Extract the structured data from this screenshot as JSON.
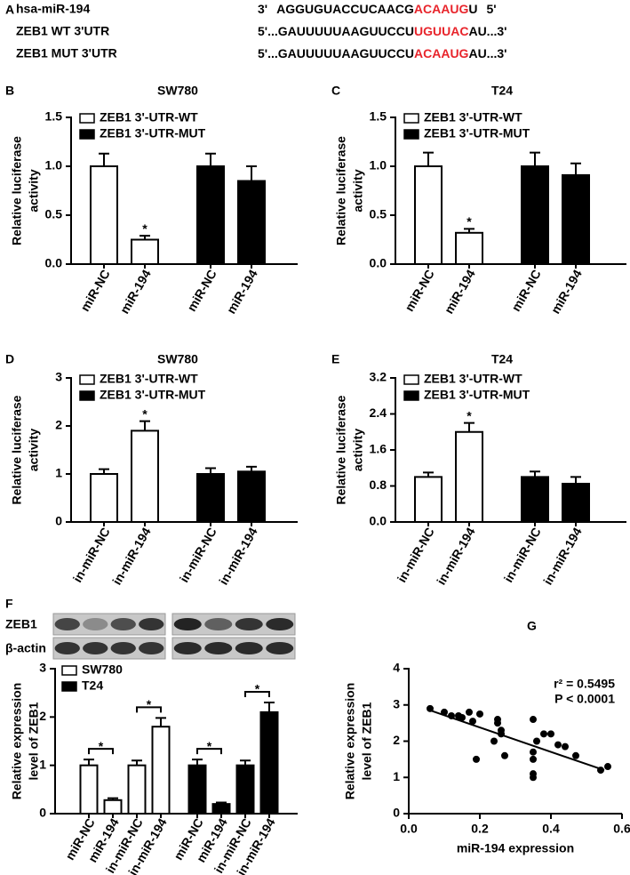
{
  "sequences": {
    "panel": "A",
    "highlight_color": "#e8242b",
    "rows": [
      {
        "name": "hsa-miR-194",
        "parts": [
          "3'",
          "AGGUGUACCUCAACG",
          "ACAAUG",
          "U",
          "5'"
        ],
        "highlight": 2
      },
      {
        "name": "ZEB1 WT 3'UTR",
        "parts": [
          "5'...GAUUUUUAAGUUCCU",
          "UGUUAC",
          "AU...3'"
        ],
        "highlight": 1
      },
      {
        "name": "ZEB1 MUT 3'UTR",
        "parts": [
          "5'...GAUUUUUAAGUUCCU",
          "ACAAUG",
          "AU...3'"
        ],
        "highlight": 1
      }
    ]
  },
  "chart_data": [
    {
      "type": "bar",
      "panel": "B",
      "title": "SW780",
      "ylabel": [
        "Relative  luciferase",
        "activity"
      ],
      "categories": [
        "miR-NC",
        "miR-194",
        "miR-NC",
        "miR-194"
      ],
      "ylim": [
        0,
        1.5
      ],
      "yticks": [
        {
          "value": 0,
          "label": "0.0"
        },
        {
          "value": 0.5,
          "label": "0.5"
        },
        {
          "value": 1,
          "label": "1.0"
        },
        {
          "value": 1.5,
          "label": "1.5"
        }
      ],
      "series": [
        {
          "name": "ZEB1 3'-UTR-WT",
          "color": "#ffffff",
          "values": [
            1.0,
            0.25,
            null,
            null
          ],
          "errors": [
            0.13,
            0.04,
            null,
            null
          ],
          "markers": [
            null,
            "*",
            null,
            null
          ]
        },
        {
          "name": "ZEB1 3'-UTR-MUT",
          "color": "#000000",
          "values": [
            null,
            null,
            1.0,
            0.85
          ],
          "errors": [
            null,
            null,
            0.13,
            0.15
          ]
        }
      ]
    },
    {
      "type": "bar",
      "panel": "C",
      "title": "T24",
      "ylabel": [
        "Relative  luciferase",
        "activity"
      ],
      "categories": [
        "miR-NC",
        "miR-194",
        "miR-NC",
        "miR-194"
      ],
      "ylim": [
        0,
        1.5
      ],
      "yticks": [
        {
          "value": 0,
          "label": "0.0"
        },
        {
          "value": 0.5,
          "label": "0.5"
        },
        {
          "value": 1,
          "label": "1.0"
        },
        {
          "value": 1.5,
          "label": "1.5"
        }
      ],
      "series": [
        {
          "name": "ZEB1 3'-UTR-WT",
          "color": "#ffffff",
          "values": [
            1.0,
            0.32,
            null,
            null
          ],
          "errors": [
            0.14,
            0.04,
            null,
            null
          ],
          "markers": [
            null,
            "*",
            null,
            null
          ]
        },
        {
          "name": "ZEB1 3'-UTR-MUT",
          "color": "#000000",
          "values": [
            null,
            null,
            1.0,
            0.91
          ],
          "errors": [
            null,
            null,
            0.14,
            0.12
          ]
        }
      ]
    },
    {
      "type": "bar",
      "panel": "D",
      "title": "SW780",
      "ylabel": [
        "Relative  luciferase",
        "activity"
      ],
      "categories": [
        "in-miR-NC",
        "in-miR-194",
        "in-miR-NC",
        "in-miR-194"
      ],
      "ylim": [
        0,
        3
      ],
      "yticks": [
        0,
        1,
        2,
        3
      ],
      "series": [
        {
          "name": "ZEB1 3'-UTR-WT",
          "color": "#ffffff",
          "values": [
            1.0,
            1.9,
            null,
            null
          ],
          "errors": [
            0.1,
            0.2,
            null,
            null
          ],
          "markers": [
            null,
            "*",
            null,
            null
          ]
        },
        {
          "name": "ZEB1 3'-UTR-MUT",
          "color": "#000000",
          "values": [
            null,
            null,
            1.0,
            1.05
          ],
          "errors": [
            null,
            null,
            0.12,
            0.1
          ]
        }
      ]
    },
    {
      "type": "bar",
      "panel": "E",
      "title": "T24",
      "ylabel": [
        "Relative  luciferase",
        "activity"
      ],
      "categories": [
        "in-miR-NC",
        "in-miR-194",
        "in-miR-NC",
        "in-miR-194"
      ],
      "ylim": [
        0,
        3.2
      ],
      "yticks": [
        {
          "value": 0,
          "label": "0.0"
        },
        {
          "value": 0.8,
          "label": "0.8"
        },
        {
          "value": 1.6,
          "label": "1.6"
        },
        {
          "value": 2.4,
          "label": "2.4"
        },
        {
          "value": 3.2,
          "label": "3.2"
        }
      ],
      "series": [
        {
          "name": "ZEB1 3'-UTR-WT",
          "color": "#ffffff",
          "values": [
            1.0,
            2.0,
            null,
            null
          ],
          "errors": [
            0.1,
            0.2,
            null,
            null
          ],
          "markers": [
            null,
            "*",
            null,
            null
          ]
        },
        {
          "name": "ZEB1 3'-UTR-MUT",
          "color": "#000000",
          "values": [
            null,
            null,
            1.0,
            0.85
          ],
          "errors": [
            null,
            null,
            0.12,
            0.15
          ]
        }
      ]
    },
    {
      "type": "bar",
      "panel": "F",
      "blot_rows": [
        "ZEB1",
        "β-actin"
      ],
      "ylabel": [
        "Relative expression",
        "level of ZEB1"
      ],
      "significance_style": "bracket",
      "categories": [
        "miR-NC",
        "miR-194",
        "in-miR-NC",
        "in-miR-194",
        "miR-NC",
        "miR-194",
        "in-miR-NC",
        "in-miR-194"
      ],
      "ylim": [
        0,
        3
      ],
      "yticks": [
        0,
        1,
        2,
        3
      ],
      "series": [
        {
          "name": "SW780",
          "color": "#ffffff",
          "values": [
            1.0,
            0.28,
            1.0,
            1.8,
            null,
            null,
            null,
            null
          ],
          "errors": [
            0.12,
            0.04,
            0.1,
            0.18,
            null,
            null,
            null,
            null
          ],
          "markers": [
            null,
            "*",
            null,
            "*",
            null,
            null,
            null,
            null
          ]
        },
        {
          "name": "T24",
          "color": "#000000",
          "values": [
            null,
            null,
            null,
            null,
            1.0,
            0.2,
            1.0,
            2.1
          ],
          "errors": [
            null,
            null,
            null,
            null,
            0.12,
            0.03,
            0.1,
            0.2
          ],
          "markers": [
            null,
            null,
            null,
            null,
            null,
            "*",
            null,
            "*"
          ]
        }
      ]
    },
    {
      "type": "scatter",
      "panel": "G",
      "xlabel": "miR-194 expression",
      "ylabel": [
        "Relative expression",
        "level of ZEB1"
      ],
      "annotations": [
        "r² = 0.5495",
        "P < 0.0001"
      ],
      "xlim": [
        0,
        0.6
      ],
      "xticks": [
        {
          "value": 0,
          "label": "0.0"
        },
        {
          "value": 0.2,
          "label": "0.2"
        },
        {
          "value": 0.4,
          "label": "0.4"
        },
        {
          "value": 0.6,
          "label": "0.6"
        }
      ],
      "ylim": [
        0,
        4
      ],
      "yticks": [
        0,
        1,
        2,
        3,
        4
      ],
      "color": "#000000",
      "x": [
        0.06,
        0.1,
        0.12,
        0.14,
        0.15,
        0.17,
        0.18,
        0.19,
        0.2,
        0.24,
        0.25,
        0.25,
        0.26,
        0.26,
        0.27,
        0.35,
        0.35,
        0.35,
        0.35,
        0.35,
        0.36,
        0.38,
        0.4,
        0.42,
        0.44,
        0.47,
        0.54,
        0.56
      ],
      "values": [
        2.9,
        2.8,
        2.7,
        2.7,
        2.65,
        2.8,
        2.55,
        1.5,
        2.75,
        2.0,
        2.5,
        2.6,
        2.2,
        2.3,
        1.6,
        2.6,
        1.7,
        1.5,
        1.1,
        1.0,
        2.0,
        2.2,
        2.2,
        1.9,
        1.85,
        1.6,
        1.2,
        1.3
      ],
      "fit": {
        "x": [
          0.06,
          0.55
        ],
        "values": [
          2.85,
          1.2
        ]
      }
    }
  ]
}
